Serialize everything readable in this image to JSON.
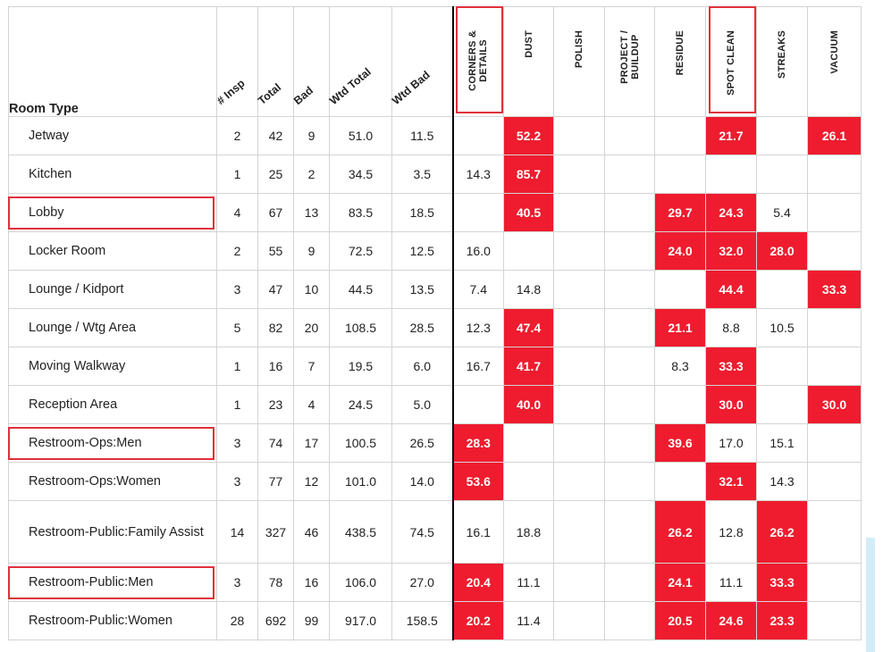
{
  "headers": {
    "room_type": "Room Type",
    "stats": [
      "# Insp",
      "Total",
      "Bad",
      "Wtd Total",
      "Wtd Bad"
    ],
    "categories": [
      [
        "CORNERS &",
        "DETAILS"
      ],
      [
        "DUST"
      ],
      [
        "POLISH"
      ],
      [
        "PROJECT /",
        "BUILDUP"
      ],
      [
        "RESIDUE"
      ],
      [
        "SPOT CLEAN"
      ],
      [
        "STREAKS"
      ],
      [
        "VACUUM"
      ]
    ]
  },
  "highlight_color": "#ee1c2e",
  "highlighted_columns": [
    0,
    5
  ],
  "highlighted_rows": [
    2,
    8,
    11
  ],
  "rows": [
    {
      "room": "Jetway",
      "stats": [
        "2",
        "42",
        "9",
        "51.0",
        "11.5"
      ],
      "cats": [
        "",
        "52.2",
        "",
        "",
        "",
        "21.7",
        "",
        "26.1"
      ],
      "hl": [
        1,
        5,
        7
      ]
    },
    {
      "room": "Kitchen",
      "stats": [
        "1",
        "25",
        "2",
        "34.5",
        "3.5"
      ],
      "cats": [
        "14.3",
        "85.7",
        "",
        "",
        "",
        "",
        "",
        ""
      ],
      "hl": [
        1
      ]
    },
    {
      "room": "Lobby",
      "stats": [
        "4",
        "67",
        "13",
        "83.5",
        "18.5"
      ],
      "cats": [
        "",
        "40.5",
        "",
        "",
        "29.7",
        "24.3",
        "5.4",
        ""
      ],
      "hl": [
        1,
        4,
        5
      ]
    },
    {
      "room": "Locker Room",
      "stats": [
        "2",
        "55",
        "9",
        "72.5",
        "12.5"
      ],
      "cats": [
        "16.0",
        "",
        "",
        "",
        "24.0",
        "32.0",
        "28.0",
        ""
      ],
      "hl": [
        4,
        5,
        6
      ]
    },
    {
      "room": "Lounge / Kidport",
      "stats": [
        "3",
        "47",
        "10",
        "44.5",
        "13.5"
      ],
      "cats": [
        "7.4",
        "14.8",
        "",
        "",
        "",
        "44.4",
        "",
        "33.3"
      ],
      "hl": [
        5,
        7
      ]
    },
    {
      "room": "Lounge / Wtg Area",
      "stats": [
        "5",
        "82",
        "20",
        "108.5",
        "28.5"
      ],
      "cats": [
        "12.3",
        "47.4",
        "",
        "",
        "21.1",
        "8.8",
        "10.5",
        ""
      ],
      "hl": [
        1,
        4
      ]
    },
    {
      "room": "Moving Walkway",
      "stats": [
        "1",
        "16",
        "7",
        "19.5",
        "6.0"
      ],
      "cats": [
        "16.7",
        "41.7",
        "",
        "",
        "8.3",
        "33.3",
        "",
        ""
      ],
      "hl": [
        1,
        5
      ]
    },
    {
      "room": "Reception Area",
      "stats": [
        "1",
        "23",
        "4",
        "24.5",
        "5.0"
      ],
      "cats": [
        "",
        "40.0",
        "",
        "",
        "",
        "30.0",
        "",
        "30.0"
      ],
      "hl": [
        1,
        5,
        7
      ]
    },
    {
      "room": "Restroom-Ops:Men",
      "stats": [
        "3",
        "74",
        "17",
        "100.5",
        "26.5"
      ],
      "cats": [
        "28.3",
        "",
        "",
        "",
        "39.6",
        "17.0",
        "15.1",
        ""
      ],
      "hl": [
        0,
        4
      ]
    },
    {
      "room": "Restroom-Ops:Women",
      "stats": [
        "3",
        "77",
        "12",
        "101.0",
        "14.0"
      ],
      "cats": [
        "53.6",
        "",
        "",
        "",
        "",
        "32.1",
        "14.3",
        ""
      ],
      "hl": [
        0,
        5
      ]
    },
    {
      "room": "Restroom-Public:Family Assist",
      "stats": [
        "14",
        "327",
        "46",
        "438.5",
        "74.5"
      ],
      "cats": [
        "16.1",
        "18.8",
        "",
        "",
        "26.2",
        "12.8",
        "26.2",
        ""
      ],
      "hl": [
        4,
        6
      ]
    },
    {
      "room": "Restroom-Public:Men",
      "stats": [
        "3",
        "78",
        "16",
        "106.0",
        "27.0"
      ],
      "cats": [
        "20.4",
        "11.1",
        "",
        "",
        "24.1",
        "11.1",
        "33.3",
        ""
      ],
      "hl": [
        0,
        4,
        6
      ]
    },
    {
      "room": "Restroom-Public:Women",
      "stats": [
        "28",
        "692",
        "99",
        "917.0",
        "158.5"
      ],
      "cats": [
        "20.2",
        "11.4",
        "",
        "",
        "20.5",
        "24.6",
        "23.3",
        ""
      ],
      "hl": [
        0,
        4,
        5,
        6
      ]
    }
  ]
}
